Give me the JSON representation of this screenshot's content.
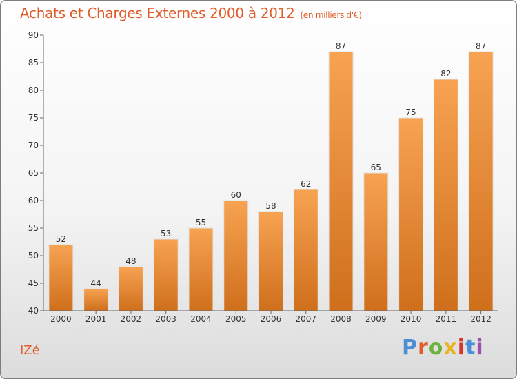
{
  "header": {
    "title": "Achats et Charges Externes 2000 à 2012",
    "unit": "(en milliers d'€)"
  },
  "footer": {
    "commune": "IZé",
    "logo": "Proxiti"
  },
  "colors": {
    "title": "#e05c2a",
    "bar_top": "#f7a352",
    "bar_bottom": "#cf6f1c",
    "logo_letters": [
      "#4a8fd6",
      "#e05c2a",
      "#6db33f",
      "#e8b31e",
      "#d8342c",
      "#4a8fd6",
      "#9b4fb0"
    ]
  },
  "chart_data": {
    "type": "bar",
    "title": "Achats et Charges Externes 2000 à 2012",
    "categories": [
      "2000",
      "2001",
      "2002",
      "2003",
      "2004",
      "2005",
      "2006",
      "2007",
      "2008",
      "2009",
      "2010",
      "2011",
      "2012"
    ],
    "values": [
      52,
      44,
      48,
      53,
      55,
      60,
      58,
      62,
      87,
      65,
      75,
      82,
      87
    ],
    "data_labels": [
      "52",
      "44",
      "48",
      "53",
      "55",
      "60",
      "58",
      "62",
      "87",
      "65",
      "75",
      "82",
      "87"
    ],
    "ylim": [
      40,
      90
    ],
    "yticks": [
      40,
      45,
      50,
      55,
      60,
      65,
      70,
      75,
      80,
      85,
      90
    ],
    "xlabel": "",
    "ylabel": "",
    "grid": false,
    "legend": "none"
  }
}
